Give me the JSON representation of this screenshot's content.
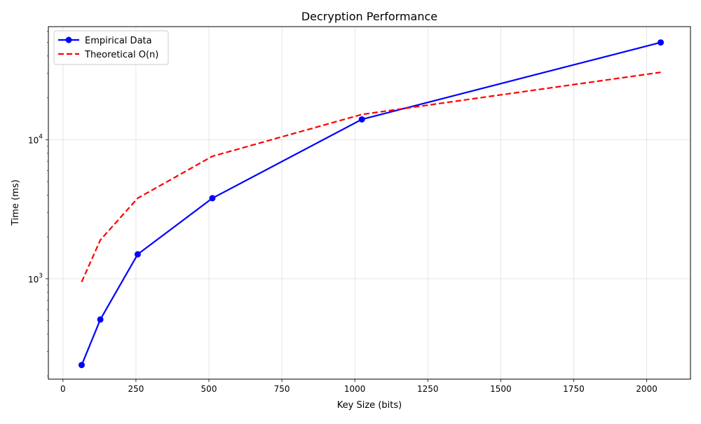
{
  "chart_data": {
    "type": "line",
    "title": "Decryption Performance",
    "xlabel": "Key Size (bits)",
    "ylabel": "Time (ms)",
    "x": [
      64,
      128,
      256,
      512,
      1024,
      2048
    ],
    "x_ticks": [
      0,
      250,
      500,
      750,
      1000,
      1250,
      1500,
      1750,
      2000
    ],
    "xlim": [
      -50,
      2150
    ],
    "yscale": "log",
    "ylim": [
      190,
      65000
    ],
    "y_major_ticks": [
      {
        "value": 1000,
        "base": "10",
        "exp": "3"
      },
      {
        "value": 10000,
        "base": "10",
        "exp": "4"
      }
    ],
    "y_minor_ticks": [
      200,
      300,
      400,
      500,
      600,
      700,
      800,
      900,
      2000,
      3000,
      4000,
      5000,
      6000,
      7000,
      8000,
      9000,
      20000,
      30000,
      40000,
      50000,
      60000
    ],
    "grid": true,
    "legend_position": "top-left",
    "series": [
      {
        "name": "Empirical Data",
        "values": [
          240,
          510,
          1500,
          3800,
          14000,
          50000
        ],
        "color": "#0000ff",
        "style": "solid",
        "marker": "circle"
      },
      {
        "name": "Theoretical O(n)",
        "values": [
          950,
          1900,
          3800,
          7600,
          15200,
          30500
        ],
        "color": "#ff0000",
        "style": "dashed",
        "marker": "none"
      }
    ]
  }
}
